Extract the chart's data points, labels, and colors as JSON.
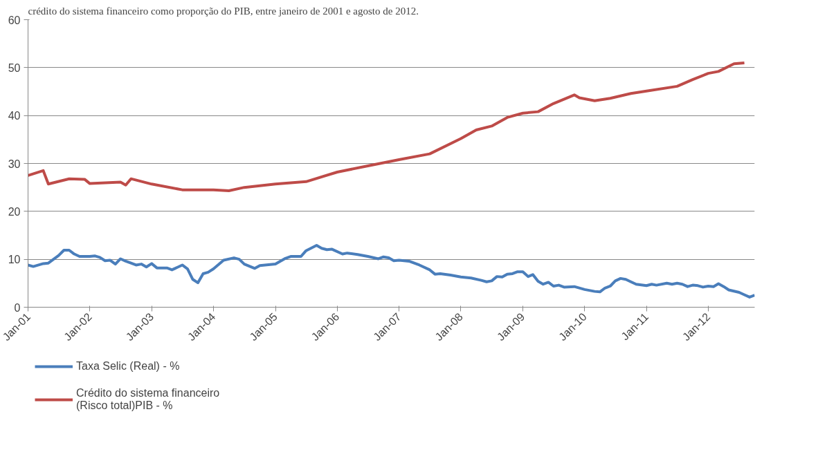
{
  "chart_data": {
    "type": "line",
    "title": "crédito do sistema financeiro como proporção do PIB, entre janeiro de 2001 e agosto de 2012.",
    "ylim": [
      0,
      60
    ],
    "yticks": [
      0,
      10,
      20,
      30,
      40,
      50,
      60
    ],
    "xlim": [
      "2001-01",
      "2012-10"
    ],
    "xticks": [
      {
        "value": "2001-01",
        "label": "Jan-01"
      },
      {
        "value": "2002-01",
        "label": "Jan-02"
      },
      {
        "value": "2003-01",
        "label": "Jan-03"
      },
      {
        "value": "2004-01",
        "label": "Jan-04"
      },
      {
        "value": "2005-01",
        "label": "Jan-05"
      },
      {
        "value": "2006-01",
        "label": "Jan-06"
      },
      {
        "value": "2007-01",
        "label": "Jan-07"
      },
      {
        "value": "2008-01",
        "label": "Jan-08"
      },
      {
        "value": "2009-01",
        "label": "Jan-09"
      },
      {
        "value": "2010-01",
        "label": "Jan-10"
      },
      {
        "value": "2011-01",
        "label": "Jan-11"
      },
      {
        "value": "2012-01",
        "label": "Jan-12"
      }
    ],
    "grid": "y",
    "legend": "bottom",
    "marker": "none",
    "line_style": "solid",
    "series": [
      {
        "name": "Taxa Selic (Real) - %",
        "color": "#4a7ebb",
        "x": [
          "2001-01",
          "2001-02",
          "2001-04",
          "2001-05",
          "2001-07",
          "2001-08",
          "2001-09",
          "2001-10",
          "2001-11",
          "2002-01",
          "2002-02",
          "2002-03",
          "2002-04",
          "2002-05",
          "2002-06",
          "2002-07",
          "2002-08",
          "2002-09",
          "2002-10",
          "2002-11",
          "2002-12",
          "2003-01",
          "2003-02",
          "2003-04",
          "2003-05",
          "2003-07",
          "2003-08",
          "2003-09",
          "2003-10",
          "2003-11",
          "2003-12",
          "2004-01",
          "2004-03",
          "2004-05",
          "2004-06",
          "2004-07",
          "2004-09",
          "2004-10",
          "2005-01",
          "2005-03",
          "2005-04",
          "2005-06",
          "2005-07",
          "2005-09",
          "2005-10",
          "2005-11",
          "2005-12",
          "2006-02",
          "2006-03",
          "2006-05",
          "2006-07",
          "2006-09",
          "2006-10",
          "2006-11",
          "2006-12",
          "2007-01",
          "2007-03",
          "2007-05",
          "2007-07",
          "2007-08",
          "2007-09",
          "2007-11",
          "2008-01",
          "2008-03",
          "2008-05",
          "2008-06",
          "2008-07",
          "2008-08",
          "2008-09",
          "2008-10",
          "2008-11",
          "2008-12",
          "2009-01",
          "2009-02",
          "2009-03",
          "2009-04",
          "2009-05",
          "2009-06",
          "2009-07",
          "2009-08",
          "2009-09",
          "2009-11",
          "2010-01",
          "2010-03",
          "2010-04",
          "2010-05",
          "2010-06",
          "2010-07",
          "2010-08",
          "2010-09",
          "2010-10",
          "2010-11",
          "2011-01",
          "2011-02",
          "2011-03",
          "2011-05",
          "2011-06",
          "2011-07",
          "2011-08",
          "2011-09",
          "2011-10",
          "2011-11",
          "2011-12",
          "2012-01",
          "2012-02",
          "2012-03",
          "2012-04",
          "2012-05",
          "2012-07",
          "2012-08",
          "2012-09",
          "2012-10"
        ],
        "values": [
          8.8,
          8.5,
          9.1,
          9.2,
          10.8,
          11.9,
          11.9,
          11.1,
          10.6,
          10.6,
          10.7,
          10.4,
          9.7,
          9.8,
          9.0,
          10.1,
          9.6,
          9.2,
          8.8,
          9.0,
          8.4,
          9.1,
          8.2,
          8.2,
          7.8,
          8.8,
          8.0,
          5.8,
          5.1,
          7.0,
          7.3,
          8.0,
          9.8,
          10.3,
          10.0,
          9.0,
          8.1,
          8.7,
          9.0,
          10.2,
          10.6,
          10.6,
          11.8,
          12.9,
          12.3,
          12.0,
          12.1,
          11.1,
          11.3,
          11.0,
          10.6,
          10.1,
          10.5,
          10.3,
          9.7,
          9.8,
          9.6,
          8.8,
          7.8,
          6.9,
          7.0,
          6.7,
          6.3,
          6.1,
          5.6,
          5.3,
          5.5,
          6.4,
          6.3,
          6.9,
          7.0,
          7.4,
          7.4,
          6.4,
          6.8,
          5.4,
          4.8,
          5.2,
          4.4,
          4.6,
          4.2,
          4.3,
          3.7,
          3.3,
          3.2,
          4.0,
          4.4,
          5.5,
          6.0,
          5.8,
          5.3,
          4.8,
          4.5,
          4.8,
          4.6,
          5.0,
          4.8,
          5.0,
          4.8,
          4.3,
          4.6,
          4.5,
          4.2,
          4.4,
          4.3,
          4.9,
          4.3,
          3.6,
          3.1,
          2.6,
          2.1,
          2.5
        ]
      },
      {
        "name": "Crédito do sistema financeiro (Risco total)PIB - %",
        "color": "#be4b48",
        "x": [
          "2001-01",
          "2001-04",
          "2001-05",
          "2001-09",
          "2001-12",
          "2002-01",
          "2002-07",
          "2002-08",
          "2002-09",
          "2003-01",
          "2003-07",
          "2004-01",
          "2004-04",
          "2004-07",
          "2005-01",
          "2005-07",
          "2006-01",
          "2006-07",
          "2007-01",
          "2007-07",
          "2008-01",
          "2008-04",
          "2008-07",
          "2008-10",
          "2009-01",
          "2009-04",
          "2009-07",
          "2009-11",
          "2009-12",
          "2010-03",
          "2010-06",
          "2010-10",
          "2011-01",
          "2011-07",
          "2011-10",
          "2012-01",
          "2012-03",
          "2012-06",
          "2012-08"
        ],
        "values": [
          27.5,
          28.5,
          25.7,
          26.8,
          26.7,
          25.8,
          26.1,
          25.5,
          26.8,
          25.7,
          24.5,
          24.5,
          24.3,
          25.0,
          25.7,
          26.2,
          28.2,
          29.5,
          30.8,
          32.0,
          35.2,
          37.0,
          37.8,
          39.6,
          40.5,
          40.8,
          42.5,
          44.3,
          43.7,
          43.1,
          43.6,
          44.6,
          45.1,
          46.1,
          47.5,
          48.8,
          49.2,
          50.8,
          51.0
        ]
      }
    ]
  }
}
